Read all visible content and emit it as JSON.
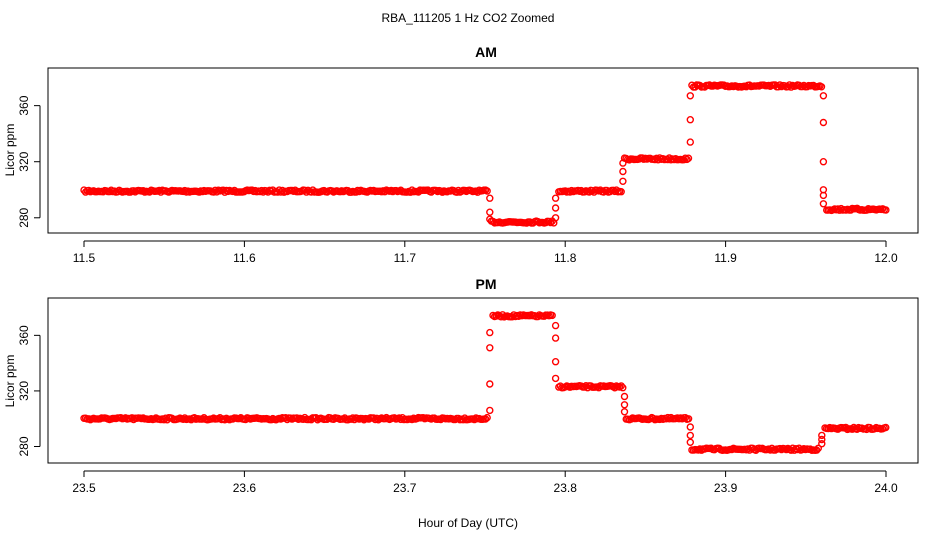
{
  "title": "RBA_111205  1 Hz CO2 Zoomed",
  "xlabel": "Hour of Day (UTC)",
  "marker_color": "#ff0000",
  "chart_data": [
    {
      "type": "scatter",
      "title": "AM",
      "ylabel": "Licor ppm",
      "xlim": [
        11.5,
        12.0
      ],
      "ylim": [
        272,
        384
      ],
      "x_ticks": [
        "11.5",
        "11.6",
        "11.7",
        "11.8",
        "11.9",
        "12.0"
      ],
      "y_ticks": [
        "280",
        "320",
        "360"
      ],
      "segments": [
        {
          "x_start": 11.5,
          "x_end": 11.752,
          "y": 299
        },
        {
          "x_start": 11.754,
          "x_end": 11.793,
          "y": 277
        },
        {
          "x_start": 11.796,
          "x_end": 11.835,
          "y": 299
        },
        {
          "x_start": 11.837,
          "x_end": 11.877,
          "y": 322
        },
        {
          "x_start": 11.879,
          "x_end": 11.96,
          "y": 374
        },
        {
          "x_start": 11.963,
          "x_end": 12.0,
          "y": 286
        }
      ],
      "transitions": [
        {
          "x": 11.753,
          "y": [
            294,
            284,
            279
          ]
        },
        {
          "x": 11.794,
          "y": [
            280,
            287,
            294
          ]
        },
        {
          "x": 11.836,
          "y": [
            306,
            313,
            319
          ]
        },
        {
          "x": 11.878,
          "y": [
            334,
            350,
            367
          ]
        },
        {
          "x": 11.961,
          "y": [
            367,
            348,
            320,
            300,
            296,
            290
          ]
        }
      ]
    },
    {
      "type": "scatter",
      "title": "PM",
      "ylabel": "Licor ppm",
      "xlim": [
        23.5,
        24.0
      ],
      "ylim": [
        271,
        384
      ],
      "x_ticks": [
        "23.5",
        "23.6",
        "23.7",
        "23.8",
        "23.9",
        "24.0"
      ],
      "y_ticks": [
        "280",
        "320",
        "360"
      ],
      "segments": [
        {
          "x_start": 23.5,
          "x_end": 23.752,
          "y": 300
        },
        {
          "x_start": 23.755,
          "x_end": 23.792,
          "y": 374
        },
        {
          "x_start": 23.796,
          "x_end": 23.836,
          "y": 323
        },
        {
          "x_start": 23.838,
          "x_end": 23.877,
          "y": 300
        },
        {
          "x_start": 23.879,
          "x_end": 23.958,
          "y": 278
        },
        {
          "x_start": 23.962,
          "x_end": 24.0,
          "y": 293
        }
      ],
      "transitions": [
        {
          "x": 23.753,
          "y": [
            306,
            325,
            351,
            362
          ]
        },
        {
          "x": 23.794,
          "y": [
            367,
            358,
            341,
            329
          ]
        },
        {
          "x": 23.837,
          "y": [
            316,
            310,
            305
          ]
        },
        {
          "x": 23.878,
          "y": [
            294,
            288,
            283
          ]
        },
        {
          "x": 23.96,
          "y": [
            282,
            285,
            288
          ]
        }
      ]
    }
  ]
}
